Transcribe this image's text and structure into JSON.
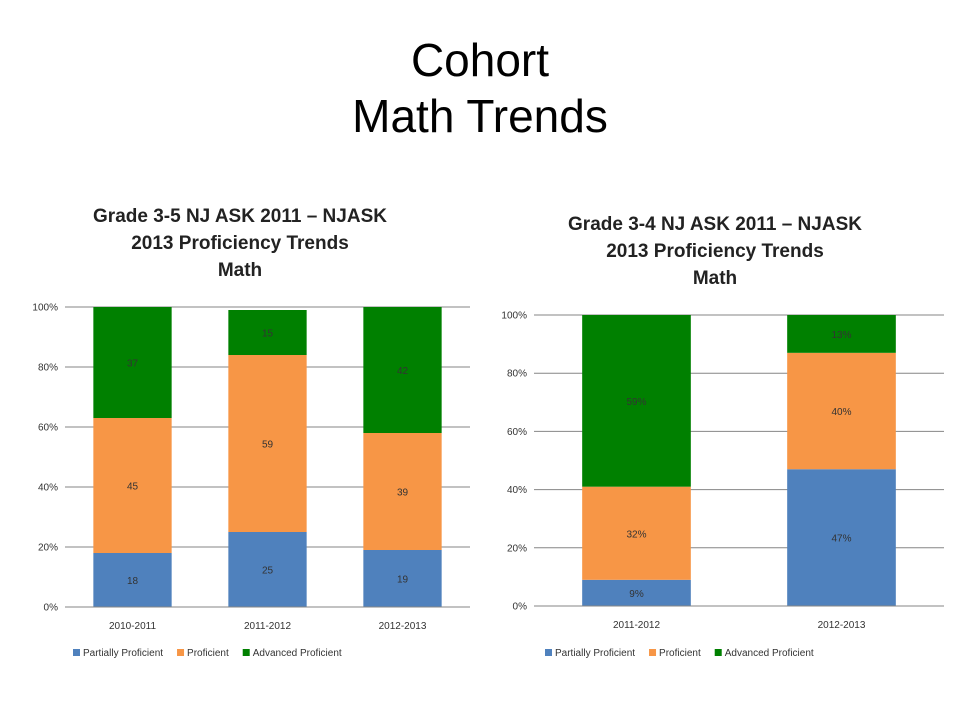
{
  "slide": {
    "title_line1": "Cohort",
    "title_line2": "Math Trends"
  },
  "colors": {
    "partial": "#4f81bd",
    "proficient": "#f79646",
    "advanced": "#008000"
  },
  "chart_data": [
    {
      "type": "bar",
      "stacked": true,
      "title_lines": [
        "Grade 3-5 NJ ASK 2011 – NJASK",
        "2013 Proficiency Trends",
        "Math"
      ],
      "categories": [
        "2010-2011",
        "2011-2012",
        "2012-2013"
      ],
      "series": [
        {
          "name": "Partially Proficient",
          "color": "#4f81bd",
          "values": [
            18,
            25,
            19
          ],
          "labels": [
            "18",
            "25",
            "19"
          ]
        },
        {
          "name": "Proficient",
          "color": "#f79646",
          "values": [
            45,
            59,
            39
          ],
          "labels": [
            "45",
            "59",
            "39"
          ]
        },
        {
          "name": "Advanced Proficient",
          "color": "#008000",
          "values": [
            37,
            15,
            42
          ],
          "labels": [
            "37",
            "15",
            "42"
          ]
        }
      ],
      "yticks": [
        "0%",
        "20%",
        "40%",
        "60%",
        "80%",
        "100%"
      ],
      "ylim": [
        0,
        100
      ],
      "grid": true,
      "legend": "bottom"
    },
    {
      "type": "bar",
      "stacked": true,
      "title_lines": [
        "Grade 3-4 NJ ASK 2011 – NJASK",
        "2013 Proficiency Trends",
        "Math"
      ],
      "categories": [
        "2011-2012",
        "2012-2013"
      ],
      "series": [
        {
          "name": "Partially Proficient",
          "color": "#4f81bd",
          "values": [
            9,
            47
          ],
          "labels": [
            "9%",
            "47%"
          ]
        },
        {
          "name": "Proficient",
          "color": "#f79646",
          "values": [
            32,
            40
          ],
          "labels": [
            "32%",
            "40%"
          ]
        },
        {
          "name": "Advanced Proficient",
          "color": "#008000",
          "values": [
            59,
            13
          ],
          "labels": [
            "59%",
            "13%"
          ]
        }
      ],
      "yticks": [
        "0%",
        "20%",
        "40%",
        "60%",
        "80%",
        "100%"
      ],
      "ylim": [
        0,
        100
      ],
      "grid": true,
      "legend": "bottom"
    }
  ]
}
